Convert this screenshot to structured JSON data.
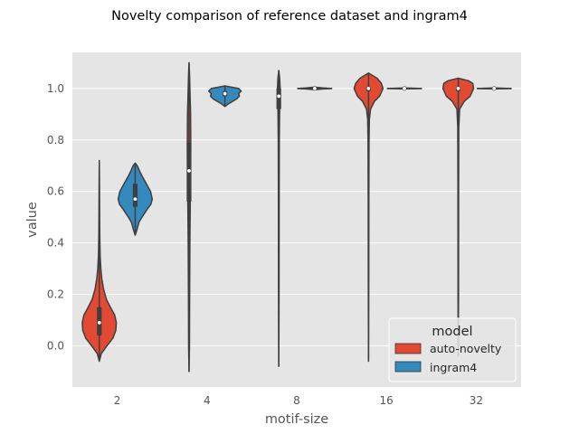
{
  "chart_data": {
    "type": "violin",
    "title": "Novelty comparison of reference dataset and ingram4",
    "xlabel": "motif-size",
    "ylabel": "value",
    "categories": [
      "2",
      "4",
      "8",
      "16",
      "32"
    ],
    "ylim": [
      -0.16,
      1.14
    ],
    "yticks": [
      0.0,
      0.2,
      0.4,
      0.6,
      0.8,
      1.0
    ],
    "ytick_labels": [
      "0.0",
      "0.2",
      "0.4",
      "0.6",
      "0.8",
      "1.0"
    ],
    "grid": true,
    "legend": {
      "title": "model",
      "placement": "lower-right",
      "entries": [
        "auto-novelty",
        "ingram4"
      ]
    },
    "series": [
      {
        "name": "auto-novelty",
        "color": "#E24A33",
        "violins": [
          {
            "category": "2",
            "range": [
              -0.06,
              0.72
            ],
            "median": 0.09,
            "q1": 0.04,
            "q3": 0.15,
            "profile": [
              [
                -0.06,
                0.0
              ],
              [
                -0.03,
                0.12
              ],
              [
                0.0,
                0.45
              ],
              [
                0.03,
                0.8
              ],
              [
                0.06,
                0.97
              ],
              [
                0.09,
                1.0
              ],
              [
                0.12,
                0.9
              ],
              [
                0.15,
                0.65
              ],
              [
                0.18,
                0.42
              ],
              [
                0.22,
                0.25
              ],
              [
                0.26,
                0.15
              ],
              [
                0.3,
                0.09
              ],
              [
                0.35,
                0.05
              ],
              [
                0.42,
                0.03
              ],
              [
                0.5,
                0.02
              ],
              [
                0.6,
                0.013
              ],
              [
                0.72,
                0.0
              ]
            ]
          },
          {
            "category": "4",
            "range": [
              -0.1,
              1.1
            ],
            "median": 0.68,
            "q1": 0.56,
            "q3": 0.79,
            "profile": [
              [
                -0.1,
                0.0
              ],
              [
                0.0,
                0.025
              ],
              [
                0.2,
                0.035
              ],
              [
                0.4,
                0.05
              ],
              [
                0.55,
                0.07
              ],
              [
                0.7,
                0.09
              ],
              [
                0.8,
                0.1
              ],
              [
                0.9,
                0.09
              ],
              [
                1.0,
                0.05
              ],
              [
                1.05,
                0.03
              ],
              [
                1.1,
                0.0
              ]
            ]
          },
          {
            "category": "8",
            "range": [
              -0.08,
              1.07
            ],
            "median": 0.97,
            "q1": 0.92,
            "q3": 1.0,
            "profile": [
              [
                -0.08,
                0.0
              ],
              [
                0.2,
                0.015
              ],
              [
                0.5,
                0.02
              ],
              [
                0.8,
                0.03
              ],
              [
                0.92,
                0.05
              ],
              [
                0.97,
                0.07
              ],
              [
                1.0,
                0.08
              ],
              [
                1.04,
                0.05
              ],
              [
                1.07,
                0.0
              ]
            ]
          },
          {
            "category": "16",
            "range": [
              -0.06,
              1.06
            ],
            "median": 1.0,
            "q1": 0.99,
            "q3": 1.0,
            "profile": [
              [
                -0.06,
                0.0
              ],
              [
                0.3,
                0.015
              ],
              [
                0.6,
                0.02
              ],
              [
                0.8,
                0.03
              ],
              [
                0.88,
                0.05
              ],
              [
                0.92,
                0.12
              ],
              [
                0.95,
                0.35
              ],
              [
                0.97,
                0.65
              ],
              [
                1.0,
                0.85
              ],
              [
                1.02,
                0.75
              ],
              [
                1.04,
                0.5
              ],
              [
                1.05,
                0.25
              ],
              [
                1.06,
                0.0
              ]
            ]
          },
          {
            "category": "32",
            "range": [
              -0.04,
              1.04
            ],
            "median": 1.0,
            "q1": 0.99,
            "q3": 1.0,
            "profile": [
              [
                -0.04,
                0.0
              ],
              [
                0.2,
                0.015
              ],
              [
                0.6,
                0.02
              ],
              [
                0.85,
                0.03
              ],
              [
                0.92,
                0.08
              ],
              [
                0.95,
                0.35
              ],
              [
                0.97,
                0.7
              ],
              [
                1.0,
                0.9
              ],
              [
                1.02,
                0.85
              ],
              [
                1.03,
                0.6
              ],
              [
                1.04,
                0.0
              ]
            ]
          }
        ]
      },
      {
        "name": "ingram4",
        "color": "#348ABD",
        "violins": [
          {
            "category": "2",
            "range": [
              0.43,
              0.71
            ],
            "median": 0.57,
            "q1": 0.54,
            "q3": 0.63,
            "profile": [
              [
                0.43,
                0.0
              ],
              [
                0.45,
                0.1
              ],
              [
                0.48,
                0.22
              ],
              [
                0.5,
                0.4
              ],
              [
                0.53,
                0.7
              ],
              [
                0.55,
                0.92
              ],
              [
                0.57,
                1.0
              ],
              [
                0.6,
                0.9
              ],
              [
                0.63,
                0.65
              ],
              [
                0.66,
                0.4
              ],
              [
                0.68,
                0.25
              ],
              [
                0.7,
                0.12
              ],
              [
                0.71,
                0.0
              ]
            ]
          },
          {
            "category": "4",
            "range": [
              0.93,
              1.01
            ],
            "median": 0.98,
            "q1": 0.97,
            "q3": 0.99,
            "profile": [
              [
                0.93,
                0.0
              ],
              [
                0.94,
                0.2
              ],
              [
                0.95,
                0.45
              ],
              [
                0.96,
                0.7
              ],
              [
                0.97,
                0.85
              ],
              [
                0.98,
                0.8
              ],
              [
                0.99,
                0.95
              ],
              [
                1.0,
                0.8
              ],
              [
                1.01,
                0.0
              ]
            ]
          },
          {
            "category": "8",
            "range": [
              0.995,
              1.005
            ],
            "median": 1.0,
            "q1": 1.0,
            "q3": 1.0,
            "profile": [
              [
                0.995,
                0.0
              ],
              [
                0.998,
                0.5
              ],
              [
                1.0,
                1.0
              ],
              [
                1.002,
                0.5
              ],
              [
                1.005,
                0.0
              ]
            ]
          },
          {
            "category": "16",
            "range": [
              0.998,
              1.002
            ],
            "median": 1.0,
            "q1": 1.0,
            "q3": 1.0,
            "profile": [
              [
                0.998,
                0.0
              ],
              [
                1.0,
                1.0
              ],
              [
                1.002,
                0.0
              ]
            ]
          },
          {
            "category": "32",
            "range": [
              0.998,
              1.002
            ],
            "median": 1.0,
            "q1": 1.0,
            "q3": 1.0,
            "profile": [
              [
                0.998,
                0.0
              ],
              [
                1.0,
                1.0
              ],
              [
                1.002,
                0.0
              ]
            ]
          }
        ]
      }
    ]
  }
}
